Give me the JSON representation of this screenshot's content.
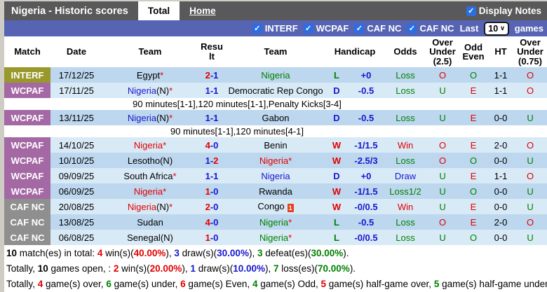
{
  "colors": {
    "r": "#e10000",
    "b": "#1717cf",
    "g": "#008000",
    "k": "#000000"
  },
  "badge_colors": {
    "INTERF": "#99992b",
    "WCPAF": "#a469a4",
    "CAF NC": "#8f8f8f"
  },
  "top_bar": {
    "title": "Nigeria - Historic scores",
    "tabs": [
      {
        "label": "Total",
        "active": true
      },
      {
        "label": "Home",
        "active": false
      }
    ],
    "display_notes_label": "Display Notes",
    "display_notes_checked": true
  },
  "filter_bar": {
    "checkboxes": [
      {
        "label": "INTERF",
        "checked": true
      },
      {
        "label": "WCPAF",
        "checked": true
      },
      {
        "label": "CAF NC",
        "checked": true
      },
      {
        "label": "CAF NC",
        "checked": true
      }
    ],
    "last_label": "Last",
    "games_value": "10",
    "games_label": "games"
  },
  "table": {
    "headers": [
      {
        "key": "match",
        "lines": [
          "Match"
        ]
      },
      {
        "key": "date",
        "lines": [
          "Date"
        ]
      },
      {
        "key": "home-team",
        "lines": [
          "Team"
        ]
      },
      {
        "key": "result",
        "lines": [
          "Result"
        ],
        "wrap": true
      },
      {
        "key": "away-team",
        "lines": [
          "Team"
        ]
      },
      {
        "key": "handicap",
        "lines": [
          "Handicap"
        ],
        "colspan": 2
      },
      {
        "key": "odds",
        "lines": [
          "Odds"
        ]
      },
      {
        "key": "over-under-2-5",
        "lines": [
          "Over",
          "Under",
          "(2.5)"
        ]
      },
      {
        "key": "odd-even",
        "lines": [
          "Odd",
          "Even"
        ]
      },
      {
        "key": "ht",
        "lines": [
          "HT"
        ]
      },
      {
        "key": "over-under-0-75",
        "lines": [
          "Over",
          "Under",
          "(0.75)"
        ]
      }
    ],
    "rows": [
      {
        "comp": "INTERF",
        "date": "17/12/25",
        "home": [
          {
            "t": "Egypt",
            "c": "k"
          },
          {
            "t": "*",
            "c": "r"
          }
        ],
        "score": [
          {
            "t": "2",
            "c": "r"
          },
          {
            "t": "-1",
            "c": "b"
          }
        ],
        "away": [
          {
            "t": "Nigeria",
            "c": "g"
          }
        ],
        "wdl": {
          "t": "L",
          "c": "g"
        },
        "handicap": "+0",
        "odds": {
          "t": "Loss",
          "c": "g"
        },
        "ou25": {
          "t": "O",
          "c": "r"
        },
        "oe": {
          "t": "O",
          "c": "g"
        },
        "ht": "1-1",
        "ou075": {
          "t": "O",
          "c": "r"
        },
        "shade": "dark"
      },
      {
        "comp": "WCPAF",
        "date": "17/11/25",
        "home": [
          {
            "t": "Nigeria",
            "c": "b"
          },
          {
            "t": "(N)",
            "c": "k"
          },
          {
            "t": "*",
            "c": "r"
          }
        ],
        "score": [
          {
            "t": "1-1",
            "c": "b"
          }
        ],
        "away": [
          {
            "t": "Democratic Rep Congo",
            "c": "k"
          }
        ],
        "wdl": {
          "t": "D",
          "c": "b"
        },
        "handicap": "-0.5",
        "odds": {
          "t": "Loss",
          "c": "g"
        },
        "ou25": {
          "t": "U",
          "c": "g"
        },
        "oe": {
          "t": "E",
          "c": "r"
        },
        "ht": "1-1",
        "ou075": {
          "t": "O",
          "c": "r"
        },
        "shade": "light"
      },
      {
        "note": "90 minutes[1-1],120 minutes[1-1],Penalty Kicks[3-4]"
      },
      {
        "comp": "WCPAF",
        "date": "13/11/25",
        "home": [
          {
            "t": "Nigeria",
            "c": "b"
          },
          {
            "t": "(N)",
            "c": "k"
          },
          {
            "t": "*",
            "c": "r"
          }
        ],
        "score": [
          {
            "t": "1-1",
            "c": "b"
          }
        ],
        "away": [
          {
            "t": "Gabon",
            "c": "k"
          }
        ],
        "wdl": {
          "t": "D",
          "c": "b"
        },
        "handicap": "-0.5",
        "odds": {
          "t": "Loss",
          "c": "g"
        },
        "ou25": {
          "t": "U",
          "c": "g"
        },
        "oe": {
          "t": "E",
          "c": "r"
        },
        "ht": "0-0",
        "ou075": {
          "t": "U",
          "c": "g"
        },
        "shade": "dark"
      },
      {
        "note": "90 minutes[1-1],120 minutes[4-1]"
      },
      {
        "comp": "WCPAF",
        "date": "14/10/25",
        "home": [
          {
            "t": "Nigeria",
            "c": "r"
          },
          {
            "t": "*",
            "c": "r"
          }
        ],
        "score": [
          {
            "t": "4",
            "c": "r"
          },
          {
            "t": "-0",
            "c": "b"
          }
        ],
        "away": [
          {
            "t": "Benin",
            "c": "k"
          }
        ],
        "wdl": {
          "t": "W",
          "c": "r"
        },
        "handicap": "-1/1.5",
        "odds": {
          "t": "Win",
          "c": "r"
        },
        "ou25": {
          "t": "O",
          "c": "r"
        },
        "oe": {
          "t": "E",
          "c": "r"
        },
        "ht": "2-0",
        "ou075": {
          "t": "O",
          "c": "r"
        },
        "shade": "light"
      },
      {
        "comp": "WCPAF",
        "date": "10/10/25",
        "home": [
          {
            "t": "Lesotho(N)",
            "c": "k"
          }
        ],
        "score": [
          {
            "t": "1-",
            "c": "b"
          },
          {
            "t": "2",
            "c": "r"
          }
        ],
        "away": [
          {
            "t": "Nigeria",
            "c": "r"
          },
          {
            "t": "*",
            "c": "r"
          }
        ],
        "wdl": {
          "t": "W",
          "c": "r"
        },
        "handicap": "-2.5/3",
        "odds": {
          "t": "Loss",
          "c": "g"
        },
        "ou25": {
          "t": "O",
          "c": "r"
        },
        "oe": {
          "t": "O",
          "c": "g"
        },
        "ht": "0-0",
        "ou075": {
          "t": "U",
          "c": "g"
        },
        "shade": "dark"
      },
      {
        "comp": "WCPAF",
        "date": "09/09/25",
        "home": [
          {
            "t": "South Africa",
            "c": "k"
          },
          {
            "t": "*",
            "c": "r"
          }
        ],
        "score": [
          {
            "t": "1-1",
            "c": "b"
          }
        ],
        "away": [
          {
            "t": "Nigeria",
            "c": "b"
          }
        ],
        "wdl": {
          "t": "D",
          "c": "b"
        },
        "handicap": "+0",
        "odds": {
          "t": "Draw",
          "c": "b"
        },
        "ou25": {
          "t": "U",
          "c": "g"
        },
        "oe": {
          "t": "E",
          "c": "r"
        },
        "ht": "1-1",
        "ou075": {
          "t": "O",
          "c": "r"
        },
        "shade": "light"
      },
      {
        "comp": "WCPAF",
        "date": "06/09/25",
        "home": [
          {
            "t": "Nigeria",
            "c": "r"
          },
          {
            "t": "*",
            "c": "r"
          }
        ],
        "score": [
          {
            "t": "1",
            "c": "r"
          },
          {
            "t": "-0",
            "c": "b"
          }
        ],
        "away": [
          {
            "t": "Rwanda",
            "c": "k"
          }
        ],
        "wdl": {
          "t": "W",
          "c": "r"
        },
        "handicap": "-1/1.5",
        "odds": {
          "t": "Loss1/2",
          "c": "g"
        },
        "ou25": {
          "t": "U",
          "c": "g"
        },
        "oe": {
          "t": "O",
          "c": "g"
        },
        "ht": "0-0",
        "ou075": {
          "t": "U",
          "c": "g"
        },
        "shade": "dark"
      },
      {
        "comp": "CAF NC",
        "date": "20/08/25",
        "home": [
          {
            "t": "Nigeria",
            "c": "r"
          },
          {
            "t": "(N)",
            "c": "k"
          },
          {
            "t": "*",
            "c": "r"
          }
        ],
        "score": [
          {
            "t": "2",
            "c": "r"
          },
          {
            "t": "-0",
            "c": "b"
          }
        ],
        "away": [
          {
            "t": "Congo",
            "c": "k"
          },
          {
            "icon": "red-card",
            "t": "1"
          }
        ],
        "wdl": {
          "t": "W",
          "c": "r"
        },
        "handicap": "-0/0.5",
        "odds": {
          "t": "Win",
          "c": "r"
        },
        "ou25": {
          "t": "U",
          "c": "g"
        },
        "oe": {
          "t": "E",
          "c": "r"
        },
        "ht": "0-0",
        "ou075": {
          "t": "U",
          "c": "g"
        },
        "shade": "light"
      },
      {
        "comp": "CAF NC",
        "date": "13/08/25",
        "home": [
          {
            "t": "Sudan",
            "c": "k"
          }
        ],
        "score": [
          {
            "t": "4",
            "c": "r"
          },
          {
            "t": "-0",
            "c": "b"
          }
        ],
        "away": [
          {
            "t": "Nigeria",
            "c": "g"
          },
          {
            "t": "*",
            "c": "r"
          }
        ],
        "wdl": {
          "t": "L",
          "c": "g"
        },
        "handicap": "-0.5",
        "odds": {
          "t": "Loss",
          "c": "g"
        },
        "ou25": {
          "t": "O",
          "c": "r"
        },
        "oe": {
          "t": "E",
          "c": "r"
        },
        "ht": "2-0",
        "ou075": {
          "t": "O",
          "c": "r"
        },
        "shade": "dark"
      },
      {
        "comp": "CAF NC",
        "date": "06/08/25",
        "home": [
          {
            "t": "Senegal(N)",
            "c": "k"
          }
        ],
        "score": [
          {
            "t": "1",
            "c": "r"
          },
          {
            "t": "-0",
            "c": "b"
          }
        ],
        "away": [
          {
            "t": "Nigeria",
            "c": "g"
          },
          {
            "t": "*",
            "c": "r"
          }
        ],
        "wdl": {
          "t": "L",
          "c": "g"
        },
        "handicap": "-0/0.5",
        "odds": {
          "t": "Loss",
          "c": "g"
        },
        "ou25": {
          "t": "U",
          "c": "g"
        },
        "oe": {
          "t": "O",
          "c": "g"
        },
        "ht": "0-0",
        "ou075": {
          "t": "U",
          "c": "g"
        },
        "shade": "light"
      }
    ]
  },
  "footer": {
    "lines": [
      [
        {
          "t": "10",
          "b": 1
        },
        {
          "t": " match(es) in total: "
        },
        {
          "t": "4",
          "c": "r",
          "b": 1
        },
        {
          "t": " win(s)("
        },
        {
          "t": "40.00%",
          "c": "r",
          "b": 1
        },
        {
          "t": "), "
        },
        {
          "t": "3",
          "c": "b",
          "b": 1
        },
        {
          "t": " draw(s)("
        },
        {
          "t": "30.00%",
          "c": "b",
          "b": 1
        },
        {
          "t": "), "
        },
        {
          "t": "3",
          "c": "g",
          "b": 1
        },
        {
          "t": " defeat(es)("
        },
        {
          "t": "30.00%",
          "c": "g",
          "b": 1
        },
        {
          "t": ")."
        }
      ],
      [
        {
          "t": "Totally, "
        },
        {
          "t": "10",
          "b": 1
        },
        {
          "t": " games open, : "
        },
        {
          "t": "2",
          "c": "r",
          "b": 1
        },
        {
          "t": " win(s)("
        },
        {
          "t": "20.00%",
          "c": "r",
          "b": 1
        },
        {
          "t": "), "
        },
        {
          "t": "1",
          "c": "b",
          "b": 1
        },
        {
          "t": " draw(s)("
        },
        {
          "t": "10.00%",
          "c": "b",
          "b": 1
        },
        {
          "t": "), "
        },
        {
          "t": "7",
          "c": "g",
          "b": 1
        },
        {
          "t": " loss(es)("
        },
        {
          "t": "70.00%",
          "c": "g",
          "b": 1
        },
        {
          "t": ")."
        }
      ],
      [
        {
          "t": "Totally, "
        },
        {
          "t": "4",
          "c": "r",
          "b": 1
        },
        {
          "t": " game(s) over, "
        },
        {
          "t": "6",
          "c": "g",
          "b": 1
        },
        {
          "t": " game(s) under, "
        },
        {
          "t": "6",
          "c": "r",
          "b": 1
        },
        {
          "t": " game(s) Even, "
        },
        {
          "t": "4",
          "c": "g",
          "b": 1
        },
        {
          "t": " game(s) Odd, "
        },
        {
          "t": "5",
          "c": "r",
          "b": 1
        },
        {
          "t": " game(s) half-game over, "
        },
        {
          "t": "5",
          "c": "g",
          "b": 1
        },
        {
          "t": " game(s) half-game under"
        }
      ]
    ]
  }
}
